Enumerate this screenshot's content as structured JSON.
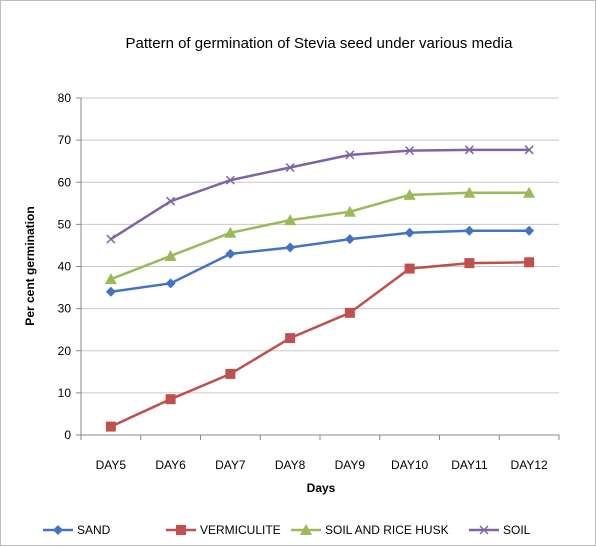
{
  "chart_data": {
    "type": "line",
    "title": "Pattern of germination of Stevia seed under various media",
    "xlabel": "Days",
    "ylabel": "Per cent germination",
    "categories": [
      "DAY5",
      "DAY6",
      "DAY7",
      "DAY8",
      "DAY9",
      "DAY10",
      "DAY11",
      "DAY12"
    ],
    "ylim": [
      0,
      80
    ],
    "yticks": [
      0,
      10,
      20,
      30,
      40,
      50,
      60,
      70,
      80
    ],
    "grid": true,
    "legend_position": "bottom",
    "series": [
      {
        "name": "SAND",
        "color": "#4472C4",
        "marker": "diamond",
        "values": [
          34,
          36,
          43,
          44.5,
          46.5,
          48,
          48.5,
          48.5
        ]
      },
      {
        "name": "VERMICULITE",
        "color": "#C0504D",
        "marker": "square",
        "values": [
          2,
          8.5,
          14.5,
          23,
          29,
          39.5,
          40.8,
          41
        ]
      },
      {
        "name": "SOIL AND RICE HUSK",
        "color": "#9BBB59",
        "marker": "triangle",
        "values": [
          37,
          42.5,
          48,
          51,
          53,
          57,
          57.5,
          57.5
        ]
      },
      {
        "name": "SOIL",
        "color": "#8064A2",
        "marker": "x",
        "values": [
          46.5,
          55.5,
          60.5,
          63.5,
          66.5,
          67.5,
          67.7,
          67.7
        ]
      }
    ]
  }
}
